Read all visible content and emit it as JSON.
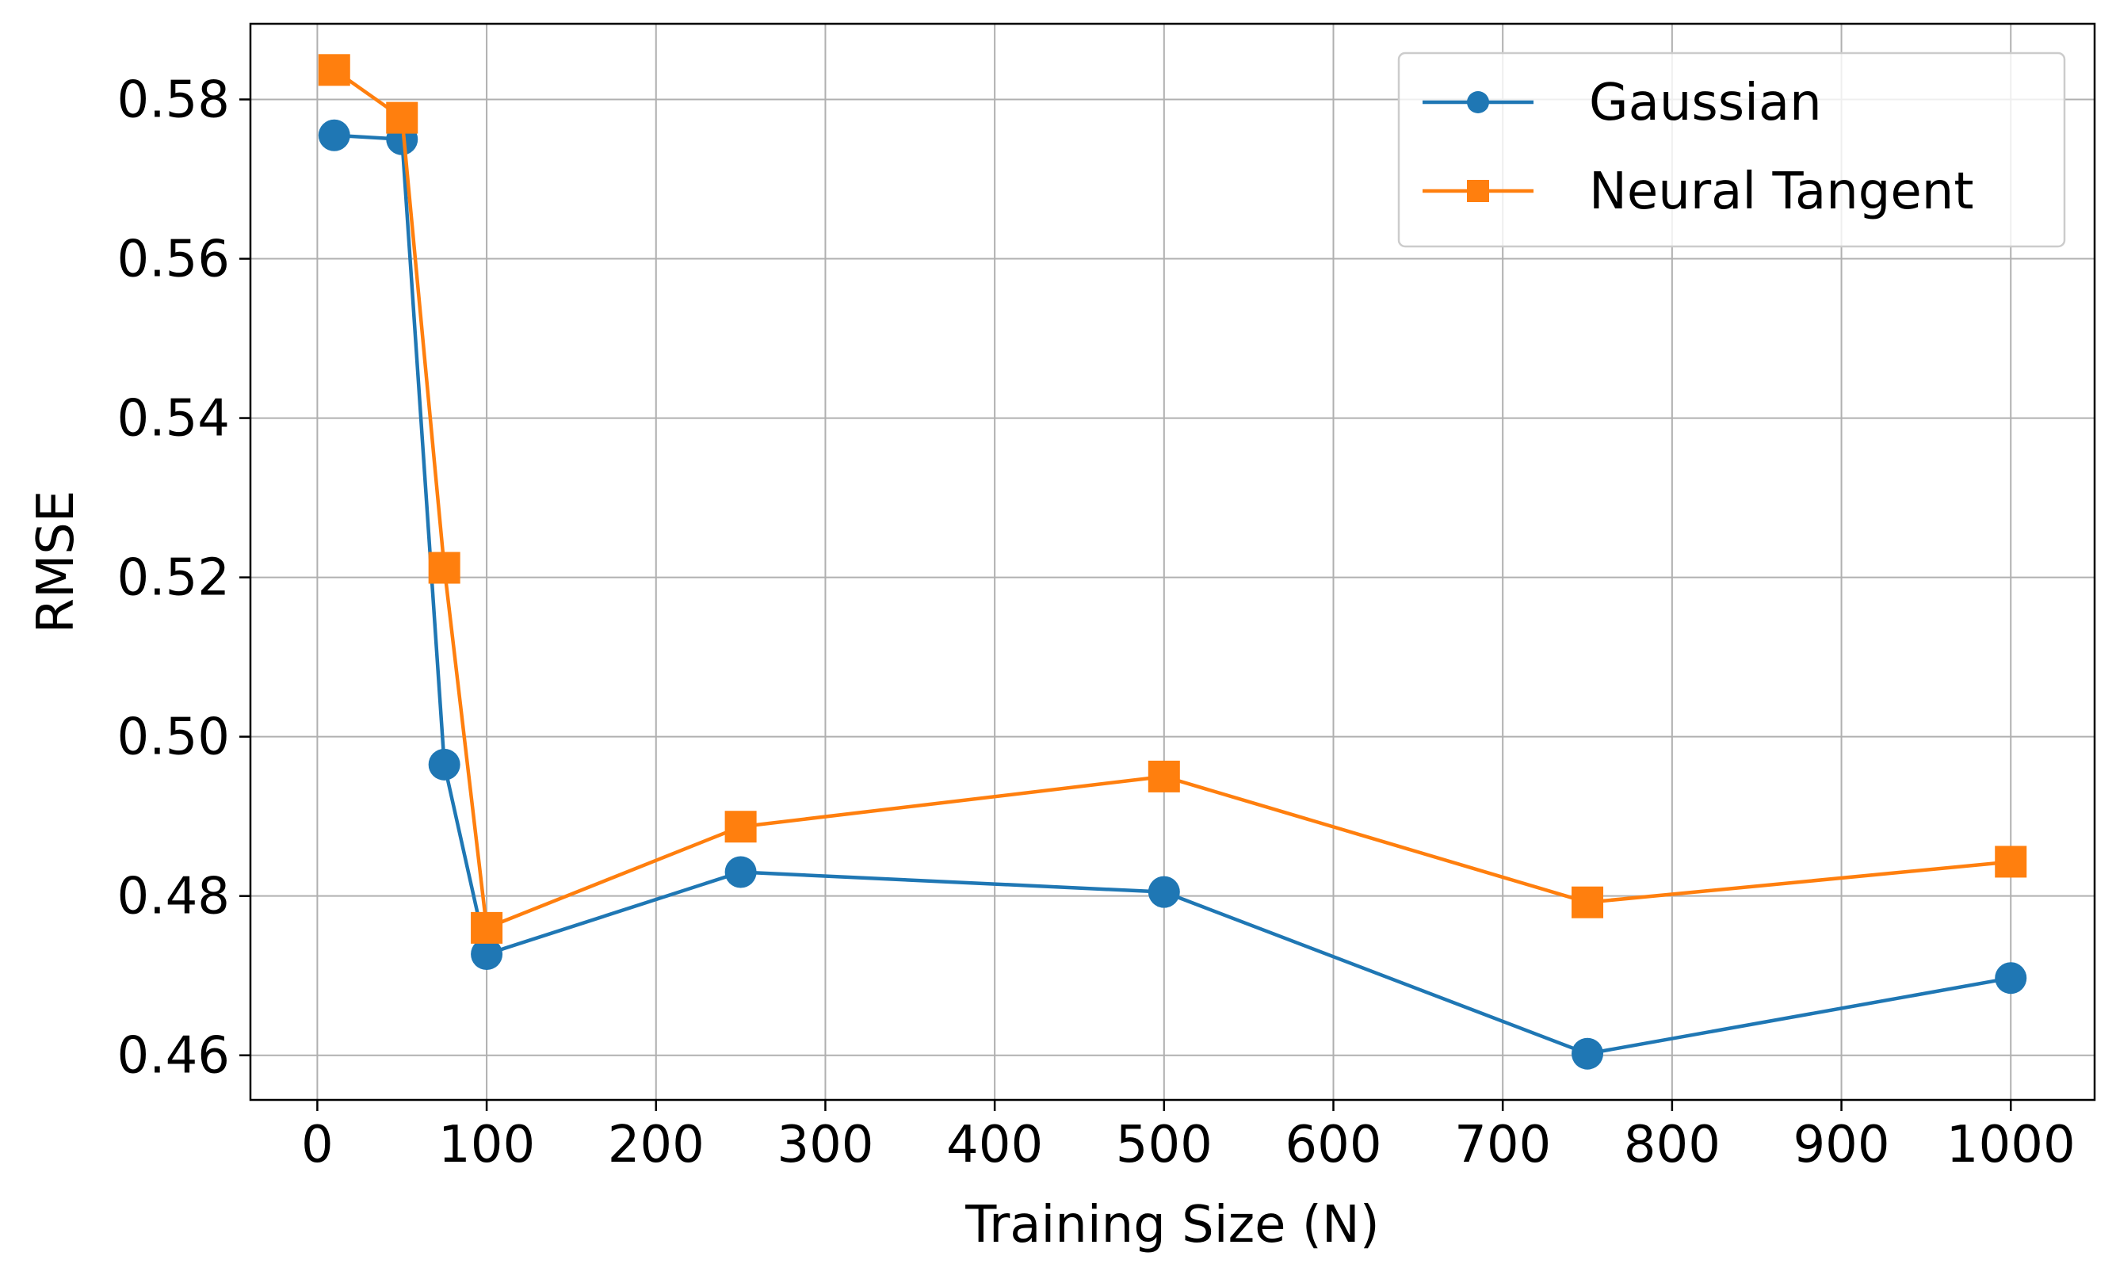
{
  "chart_data": {
    "type": "line",
    "title": "",
    "xlabel": "Training Size (N)",
    "ylabel": "RMSE",
    "xlim": [
      -39.5,
      1049.5
    ],
    "ylim": [
      0.4544,
      0.5895
    ],
    "xticks": [
      0,
      100,
      200,
      300,
      400,
      500,
      600,
      700,
      800,
      900,
      1000
    ],
    "xtick_labels": [
      "0",
      "100",
      "200",
      "300",
      "400",
      "500",
      "600",
      "700",
      "800",
      "900",
      "1000"
    ],
    "yticks": [
      0.46,
      0.48,
      0.5,
      0.52,
      0.54,
      0.56,
      0.58
    ],
    "ytick_labels": [
      "0.46",
      "0.48",
      "0.50",
      "0.52",
      "0.54",
      "0.56",
      "0.58"
    ],
    "grid": true,
    "legend_position": "top-right",
    "x": [
      10,
      50,
      75,
      100,
      250,
      500,
      750,
      1000
    ],
    "series": [
      {
        "name": "Gaussian",
        "color": "#1f77b4",
        "marker": "circle",
        "values": [
          0.5755,
          0.575,
          0.4965,
          0.4727,
          0.483,
          0.4805,
          0.4602,
          0.4697
        ]
      },
      {
        "name": "Neural Tangent",
        "color": "#ff7f0e",
        "marker": "square",
        "values": [
          0.5837,
          0.5777,
          0.5212,
          0.476,
          0.4887,
          0.495,
          0.4792,
          0.4843
        ]
      }
    ]
  }
}
